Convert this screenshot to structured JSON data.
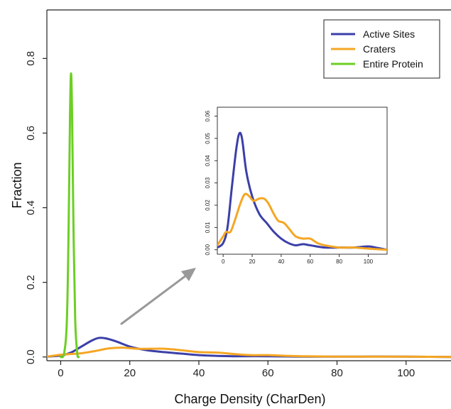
{
  "chart_data": [
    {
      "type": "line",
      "title": "",
      "xlabel": "Charge Density (CharDen)",
      "ylabel": "Fraction",
      "xlim": [
        -4,
        113
      ],
      "ylim": [
        -0.01,
        0.93
      ],
      "xticks": [
        0,
        20,
        40,
        60,
        80,
        100
      ],
      "yticks": [
        0.0,
        0.2,
        0.4,
        0.6,
        0.8
      ],
      "xtick_labels": [
        "0",
        "20",
        "40",
        "60",
        "80",
        "100"
      ],
      "ytick_labels": [
        "0.0",
        "0.2",
        "0.4",
        "0.6",
        "0.8"
      ],
      "legend_position": "top-right",
      "grid": false,
      "series": [
        {
          "name": "Active Sites",
          "color": "#3b3fa8",
          "points": [
            [
              -4,
              0.001
            ],
            [
              0,
              0.004
            ],
            [
              3,
              0.012
            ],
            [
              6,
              0.028
            ],
            [
              9,
              0.044
            ],
            [
              11,
              0.051
            ],
            [
              13,
              0.05
            ],
            [
              16,
              0.042
            ],
            [
              20,
              0.028
            ],
            [
              25,
              0.018
            ],
            [
              30,
              0.013
            ],
            [
              35,
              0.009
            ],
            [
              40,
              0.005
            ],
            [
              45,
              0.003
            ],
            [
              50,
              0.002
            ],
            [
              60,
              0.002
            ],
            [
              70,
              0.001
            ],
            [
              80,
              0.001
            ],
            [
              100,
              0.001
            ],
            [
              113,
              0.0
            ]
          ]
        },
        {
          "name": "Craters",
          "color": "#f5a623",
          "points": [
            [
              -4,
              0.001
            ],
            [
              0,
              0.006
            ],
            [
              3,
              0.008
            ],
            [
              6,
              0.01
            ],
            [
              10,
              0.016
            ],
            [
              14,
              0.023
            ],
            [
              18,
              0.025
            ],
            [
              22,
              0.022
            ],
            [
              26,
              0.022
            ],
            [
              30,
              0.022
            ],
            [
              35,
              0.018
            ],
            [
              40,
              0.013
            ],
            [
              45,
              0.012
            ],
            [
              50,
              0.008
            ],
            [
              55,
              0.005
            ],
            [
              60,
              0.005
            ],
            [
              65,
              0.003
            ],
            [
              70,
              0.002
            ],
            [
              80,
              0.001
            ],
            [
              100,
              0.001
            ],
            [
              113,
              0.0
            ]
          ]
        },
        {
          "name": "Entire Protein",
          "color": "#6ccf24",
          "points": [
            [
              0,
              0.0
            ],
            [
              1,
              0.01
            ],
            [
              1.8,
              0.1
            ],
            [
              2.3,
              0.35
            ],
            [
              2.7,
              0.65
            ],
            [
              3.0,
              0.76
            ],
            [
              3.3,
              0.65
            ],
            [
              3.7,
              0.35
            ],
            [
              4.2,
              0.1
            ],
            [
              4.8,
              0.01
            ],
            [
              5.2,
              0.0
            ]
          ]
        }
      ]
    },
    {
      "type": "line",
      "title": "",
      "xlim": [
        -4,
        113
      ],
      "ylim": [
        -0.002,
        0.064
      ],
      "xticks": [
        0,
        20,
        40,
        60,
        80,
        100
      ],
      "yticks": [
        0.0,
        0.01,
        0.02,
        0.03,
        0.04,
        0.05,
        0.06
      ],
      "xtick_labels": [
        "0",
        "20",
        "40",
        "60",
        "80",
        "100"
      ],
      "ytick_labels": [
        "0.00",
        "0.01",
        "0.02",
        "0.03",
        "0.04",
        "0.05",
        "0.06"
      ],
      "grid": false,
      "series": [
        {
          "name": "Active Sites",
          "color": "#3b3fa8",
          "points": [
            [
              -4,
              0.001
            ],
            [
              0,
              0.003
            ],
            [
              3,
              0.01
            ],
            [
              6,
              0.028
            ],
            [
              9,
              0.045
            ],
            [
              11,
              0.052
            ],
            [
              13,
              0.05
            ],
            [
              16,
              0.035
            ],
            [
              20,
              0.024
            ],
            [
              25,
              0.016
            ],
            [
              30,
              0.012
            ],
            [
              35,
              0.008
            ],
            [
              40,
              0.005
            ],
            [
              45,
              0.003
            ],
            [
              50,
              0.002
            ],
            [
              55,
              0.0025
            ],
            [
              60,
              0.002
            ],
            [
              70,
              0.001
            ],
            [
              80,
              0.001
            ],
            [
              90,
              0.001
            ],
            [
              100,
              0.0015
            ],
            [
              105,
              0.001
            ],
            [
              113,
              0.0
            ]
          ]
        },
        {
          "name": "Craters",
          "color": "#f5a623",
          "points": [
            [
              -4,
              0.002
            ],
            [
              0,
              0.006
            ],
            [
              2,
              0.008
            ],
            [
              5,
              0.008
            ],
            [
              8,
              0.013
            ],
            [
              12,
              0.021
            ],
            [
              15,
              0.025
            ],
            [
              18,
              0.024
            ],
            [
              21,
              0.022
            ],
            [
              25,
              0.023
            ],
            [
              28,
              0.023
            ],
            [
              31,
              0.021
            ],
            [
              35,
              0.016
            ],
            [
              38,
              0.013
            ],
            [
              42,
              0.012
            ],
            [
              46,
              0.009
            ],
            [
              50,
              0.006
            ],
            [
              55,
              0.005
            ],
            [
              60,
              0.005
            ],
            [
              65,
              0.003
            ],
            [
              70,
              0.002
            ],
            [
              80,
              0.001
            ],
            [
              90,
              0.001
            ],
            [
              100,
              0.0005
            ],
            [
              113,
              0.0
            ]
          ]
        }
      ]
    }
  ],
  "icons": {
    "arrow": "arrow-up-right-icon"
  }
}
